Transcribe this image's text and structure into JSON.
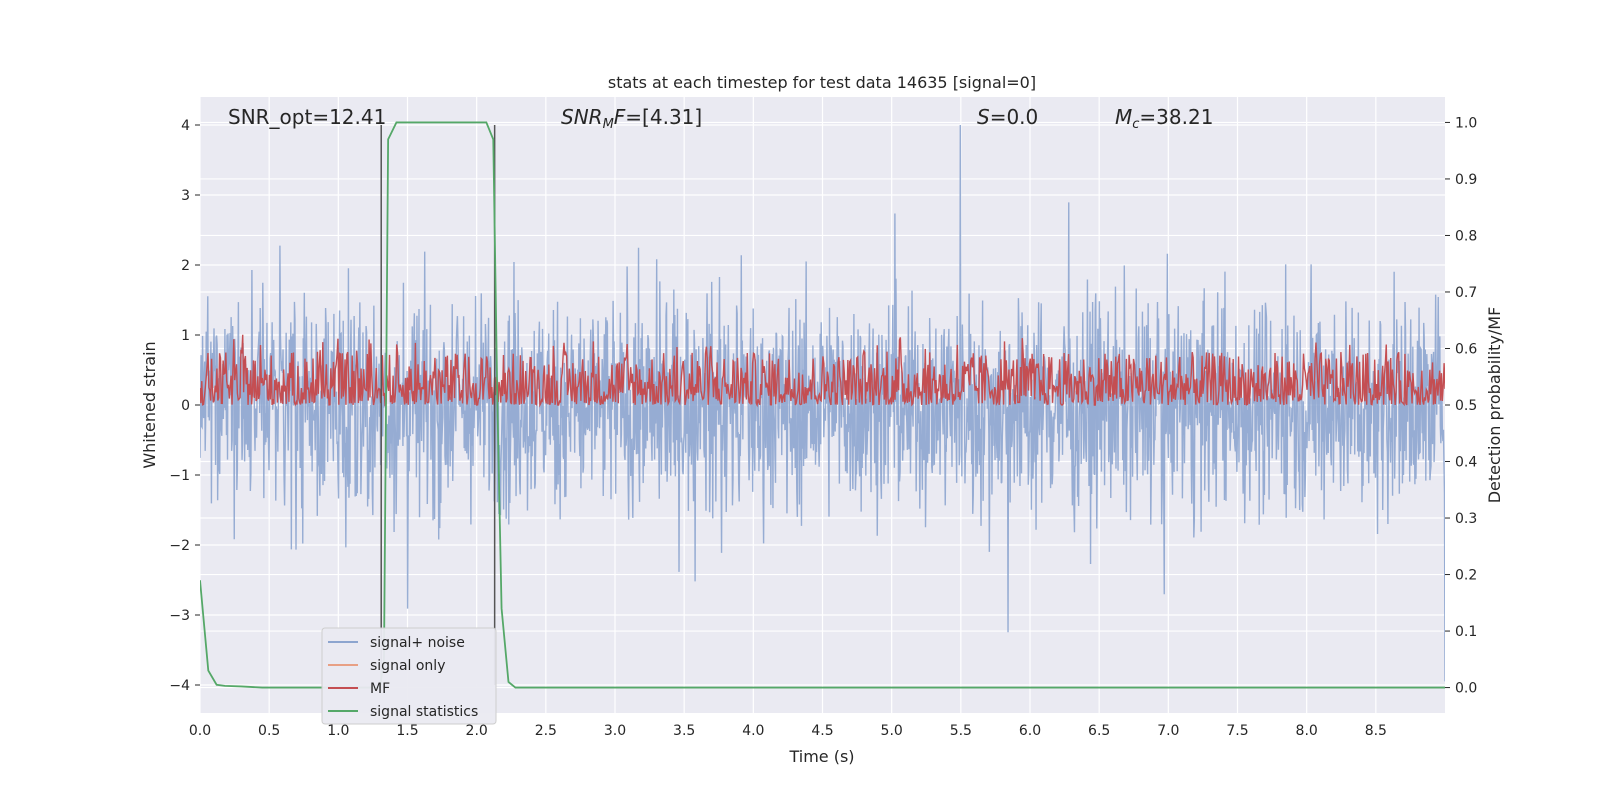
{
  "chart_data": {
    "type": "line",
    "title": "stats at each timestep for test data 14635 [signal=0]",
    "xlabel": "Time (s)",
    "ylabel": "Whitened strain",
    "y2label": "Detection probability/MF",
    "xlim": [
      0.0,
      9.0
    ],
    "ylim": [
      -4.4,
      4.4
    ],
    "y2lim": [
      -0.045,
      1.045
    ],
    "xticks": [
      0.0,
      0.5,
      1.0,
      1.5,
      2.0,
      2.5,
      3.0,
      3.5,
      4.0,
      4.5,
      5.0,
      5.5,
      6.0,
      6.5,
      7.0,
      7.5,
      8.0,
      8.5
    ],
    "xtick_labels": [
      "0.0",
      "0.5",
      "1.0",
      "1.5",
      "2.0",
      "2.5",
      "3.0",
      "3.5",
      "4.0",
      "4.5",
      "5.0",
      "5.5",
      "6.0",
      "6.5",
      "7.0",
      "7.5",
      "8.0",
      "8.5"
    ],
    "yticks": [
      4,
      3,
      2,
      1,
      0,
      -1,
      -2,
      -3,
      -4
    ],
    "ytick_labels": [
      "4",
      "3",
      "2",
      "1",
      "0",
      "−1",
      "−2",
      "−3",
      "−4"
    ],
    "y2ticks": [
      1.0,
      0.9,
      0.8,
      0.7,
      0.6,
      0.5,
      0.4,
      0.3,
      0.2,
      0.1,
      0.0
    ],
    "y2tick_labels": [
      "1.0",
      "0.9",
      "0.8",
      "0.7",
      "0.6",
      "0.5",
      "0.4",
      "0.3",
      "0.2",
      "0.1",
      "0.0"
    ],
    "grid": true,
    "annotations": {
      "snr_opt": "SNR_opt=12.41",
      "snr_mf_base": "SNR",
      "snr_mf_sub": "M",
      "snr_mf_tail": "F=[4.31]",
      "s_var": "S",
      "s_val": "=0.0",
      "mc_var": "M",
      "mc_sub": "c",
      "mc_val": "=38.21"
    },
    "series": [
      {
        "name": "signal+ noise",
        "color": "#8da5cf",
        "axis": "left",
        "description": "whitened strain noise, amplitude ~±2.5 with peaks near ±4",
        "noise_amplitude": 1.6,
        "peak_max": 4.0
      },
      {
        "name": "signal only",
        "color": "#e8a085",
        "axis": "left",
        "values_note": "zero"
      },
      {
        "name": "MF",
        "color": "#c44e52",
        "axis": "right",
        "baseline": 0.5,
        "range": [
          0.5,
          0.625
        ]
      },
      {
        "name": "signal statistics",
        "color": "#55a868",
        "axis": "right",
        "x": [
          0.0,
          0.06,
          0.12,
          0.18,
          0.3,
          0.45,
          1.0,
          1.3,
          1.33,
          1.36,
          1.38,
          1.42,
          1.5,
          2.0,
          2.07,
          2.12,
          2.15,
          2.18,
          2.23,
          2.28,
          4.0,
          6.0,
          9.0
        ],
        "y": [
          0.19,
          0.03,
          0.005,
          0.003,
          0.002,
          0.0,
          0.0,
          0.0,
          0.05,
          0.97,
          0.98,
          1.0,
          1.0,
          1.0,
          1.0,
          0.97,
          0.5,
          0.14,
          0.01,
          0.0,
          0.0,
          0.0,
          0.0
        ]
      }
    ],
    "vlines": [
      1.31,
      2.13
    ],
    "legend": {
      "placement": "lower-left",
      "labels": [
        "signal+ noise",
        "signal only",
        "MF",
        "signal statistics"
      ]
    }
  }
}
